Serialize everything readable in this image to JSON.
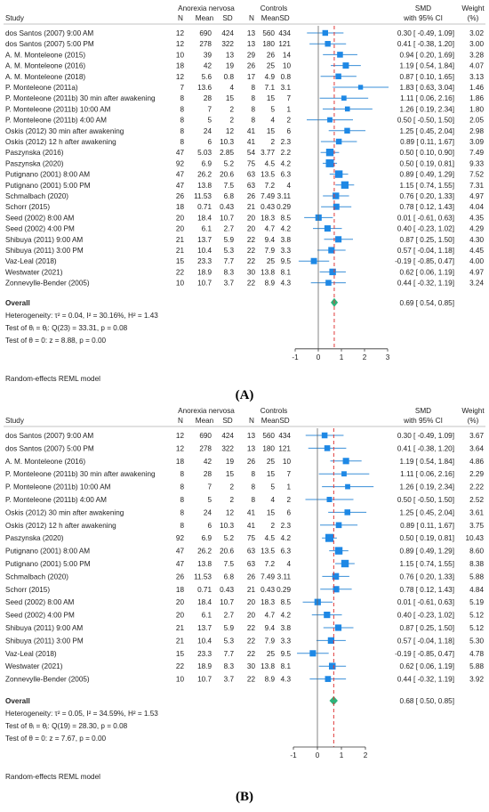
{
  "chart_data": [
    {
      "type": "forest",
      "panel": "(A)",
      "headers": {
        "study": "Study",
        "group1": "Anorexia nervosa",
        "group2": "Controls",
        "n1": "N",
        "mean1": "Mean",
        "sd1": "SD",
        "n2": "N",
        "mean2": "Mean",
        "sd2": "SD",
        "smd_line1": "SMD",
        "smd_line2": "with 95% CI",
        "weight_line1": "Weight",
        "weight_line2": "(%)"
      },
      "studies": [
        {
          "name": "dos Santos (2007) 9:00 AM",
          "n1": "12",
          "mean1": "690",
          "sd1": "424",
          "n2": "13",
          "mean2": "560",
          "sd2": "434",
          "smd": 0.3,
          "lo": -0.49,
          "hi": 1.09,
          "ci_text": "0.30 [ -0.49, 1.09]",
          "weight": "3.02"
        },
        {
          "name": "dos Santos (2007) 5:00 PM",
          "n1": "12",
          "mean1": "278",
          "sd1": "322",
          "n2": "13",
          "mean2": "180",
          "sd2": "121",
          "smd": 0.41,
          "lo": -0.38,
          "hi": 1.2,
          "ci_text": "0.41 [ -0.38, 1.20]",
          "weight": "3.00"
        },
        {
          "name": "A. M. Monteleone (2015)",
          "n1": "10",
          "mean1": "39",
          "sd1": "13",
          "n2": "29",
          "mean2": "26",
          "sd2": "14",
          "smd": 0.94,
          "lo": 0.2,
          "hi": 1.69,
          "ci_text": "0.94 [ 0.20, 1.69]",
          "weight": "3.28"
        },
        {
          "name": "A. M. Monteleone (2016)",
          "n1": "18",
          "mean1": "42",
          "sd1": "19",
          "n2": "26",
          "mean2": "25",
          "sd2": "10",
          "smd": 1.19,
          "lo": 0.54,
          "hi": 1.84,
          "ci_text": "1.19 [ 0.54, 1.84]",
          "weight": "4.07"
        },
        {
          "name": "A. M. Monteleone (2018)",
          "n1": "12",
          "mean1": "5.6",
          "sd1": "0.8",
          "n2": "17",
          "mean2": "4.9",
          "sd2": "0.8",
          "smd": 0.87,
          "lo": 0.1,
          "hi": 1.65,
          "ci_text": "0.87 [ 0.10, 1.65]",
          "weight": "3.13"
        },
        {
          "name": "P. Monteleone (2011a)",
          "n1": "7",
          "mean1": "13.6",
          "sd1": "4",
          "n2": "8",
          "mean2": "7.1",
          "sd2": "3.1",
          "smd": 1.83,
          "lo": 0.63,
          "hi": 3.04,
          "ci_text": "1.83 [ 0.63, 3.04]",
          "weight": "1.46"
        },
        {
          "name": "P. Monteleone (2011b) 30 min after awakening",
          "n1": "8",
          "mean1": "28",
          "sd1": "15",
          "n2": "8",
          "mean2": "15",
          "sd2": "7",
          "smd": 1.11,
          "lo": 0.06,
          "hi": 2.16,
          "ci_text": "1.11 [ 0.06, 2.16]",
          "weight": "1.86"
        },
        {
          "name": "P. Monteleone (2011b) 10:00 AM",
          "n1": "8",
          "mean1": "7",
          "sd1": "2",
          "n2": "8",
          "mean2": "5",
          "sd2": "1",
          "smd": 1.26,
          "lo": 0.19,
          "hi": 2.34,
          "ci_text": "1.26 [ 0.19, 2.34]",
          "weight": "1.80"
        },
        {
          "name": "P. Monteleone (2011b) 4:00 AM",
          "n1": "8",
          "mean1": "5",
          "sd1": "2",
          "n2": "8",
          "mean2": "4",
          "sd2": "2",
          "smd": 0.5,
          "lo": -0.5,
          "hi": 1.5,
          "ci_text": "0.50 [ -0.50, 1.50]",
          "weight": "2.05"
        },
        {
          "name": "Oskis (2012) 30 min after awakening",
          "n1": "8",
          "mean1": "24",
          "sd1": "12",
          "n2": "41",
          "mean2": "15",
          "sd2": "6",
          "smd": 1.25,
          "lo": 0.45,
          "hi": 2.04,
          "ci_text": "1.25 [ 0.45, 2.04]",
          "weight": "2.98"
        },
        {
          "name": "Oskis (2012) 12 h after awakening",
          "n1": "8",
          "mean1": "6",
          "sd1": "10.3",
          "n2": "41",
          "mean2": "2",
          "sd2": "2.3",
          "smd": 0.89,
          "lo": 0.11,
          "hi": 1.67,
          "ci_text": "0.89 [ 0.11, 1.67]",
          "weight": "3.09"
        },
        {
          "name": "Paszynska (2016)",
          "n1": "47",
          "mean1": "5.03",
          "sd1": "2.85",
          "n2": "54",
          "mean2": "3.77",
          "sd2": "2.2",
          "smd": 0.5,
          "lo": 0.1,
          "hi": 0.9,
          "ci_text": "0.50 [ 0.10, 0.90]",
          "weight": "7.49"
        },
        {
          "name": "Paszynska (2020)",
          "n1": "92",
          "mean1": "6.9",
          "sd1": "5.2",
          "n2": "75",
          "mean2": "4.5",
          "sd2": "4.2",
          "smd": 0.5,
          "lo": 0.19,
          "hi": 0.81,
          "ci_text": "0.50 [ 0.19, 0.81]",
          "weight": "9.33"
        },
        {
          "name": "Putignano (2001) 8:00 AM",
          "n1": "47",
          "mean1": "26.2",
          "sd1": "20.6",
          "n2": "63",
          "mean2": "13.5",
          "sd2": "6.3",
          "smd": 0.89,
          "lo": 0.49,
          "hi": 1.29,
          "ci_text": "0.89 [ 0.49, 1.29]",
          "weight": "7.52"
        },
        {
          "name": "Putignano (2001) 5:00 PM",
          "n1": "47",
          "mean1": "13.8",
          "sd1": "7.5",
          "n2": "63",
          "mean2": "7.2",
          "sd2": "4",
          "smd": 1.15,
          "lo": 0.74,
          "hi": 1.55,
          "ci_text": "1.15 [ 0.74, 1.55]",
          "weight": "7.31"
        },
        {
          "name": "Schmalbach (2020)",
          "n1": "26",
          "mean1": "11.53",
          "sd1": "6.8",
          "n2": "26",
          "mean2": "7.49",
          "sd2": "3.11",
          "smd": 0.76,
          "lo": 0.2,
          "hi": 1.33,
          "ci_text": "0.76 [ 0.20, 1.33]",
          "weight": "4.97"
        },
        {
          "name": "Schorr (2015)",
          "n1": "18",
          "mean1": "0.71",
          "sd1": "0.43",
          "n2": "21",
          "mean2": "0.43",
          "sd2": "0.29",
          "smd": 0.78,
          "lo": 0.12,
          "hi": 1.43,
          "ci_text": "0.78 [ 0.12, 1.43]",
          "weight": "4.04"
        },
        {
          "name": "Seed (2002) 8:00 AM",
          "n1": "20",
          "mean1": "18.4",
          "sd1": "10.7",
          "n2": "20",
          "mean2": "18.3",
          "sd2": "8.5",
          "smd": 0.01,
          "lo": -0.61,
          "hi": 0.63,
          "ci_text": "0.01 [ -0.61, 0.63]",
          "weight": "4.35"
        },
        {
          "name": "Seed (2002) 4:00 PM",
          "n1": "20",
          "mean1": "6.1",
          "sd1": "2.7",
          "n2": "20",
          "mean2": "4.7",
          "sd2": "4.2",
          "smd": 0.4,
          "lo": -0.23,
          "hi": 1.02,
          "ci_text": "0.40 [ -0.23, 1.02]",
          "weight": "4.29"
        },
        {
          "name": "Shibuya (2011) 9:00 AM",
          "n1": "21",
          "mean1": "13.7",
          "sd1": "5.9",
          "n2": "22",
          "mean2": "9.4",
          "sd2": "3.8",
          "smd": 0.87,
          "lo": 0.25,
          "hi": 1.5,
          "ci_text": "0.87 [ 0.25, 1.50]",
          "weight": "4.30"
        },
        {
          "name": "Shibuya (2011) 3:00 PM",
          "n1": "21",
          "mean1": "10.4",
          "sd1": "5.3",
          "n2": "22",
          "mean2": "7.9",
          "sd2": "3.3",
          "smd": 0.57,
          "lo": -0.04,
          "hi": 1.18,
          "ci_text": "0.57 [ -0.04, 1.18]",
          "weight": "4.45"
        },
        {
          "name": "Vaz-Leal (2018)",
          "n1": "15",
          "mean1": "23.3",
          "sd1": "7.7",
          "n2": "22",
          "mean2": "25",
          "sd2": "9.5",
          "smd": -0.19,
          "lo": -0.85,
          "hi": 0.47,
          "ci_text": "-0.19 [ -0.85, 0.47]",
          "weight": "4.00"
        },
        {
          "name": "Westwater (2021)",
          "n1": "22",
          "mean1": "18.9",
          "sd1": "8.3",
          "n2": "30",
          "mean2": "13.8",
          "sd2": "8.1",
          "smd": 0.62,
          "lo": 0.06,
          "hi": 1.19,
          "ci_text": "0.62 [ 0.06, 1.19]",
          "weight": "4.97"
        },
        {
          "name": "Zonnevylle-Bender (2005)",
          "n1": "10",
          "mean1": "10.7",
          "sd1": "3.7",
          "n2": "22",
          "mean2": "8.9",
          "sd2": "4.3",
          "smd": 0.44,
          "lo": -0.32,
          "hi": 1.19,
          "ci_text": "0.44 [ -0.32, 1.19]",
          "weight": "3.24"
        }
      ],
      "overall": {
        "label": "Overall",
        "smd": 0.69,
        "lo": 0.54,
        "hi": 0.85,
        "ci_text": "0.69 [ 0.54, 0.85]"
      },
      "stats": [
        "Heterogeneity: τ² = 0.04, I² = 30.16%, H² = 1.43",
        "Test of θᵢ = θⱼ: Q(23) = 33.31, p = 0.08",
        "Test of θ = 0: z = 8.88, p = 0.00"
      ],
      "model_note": "Random-effects REML model",
      "xlim": [
        -1,
        3
      ],
      "xticks": [
        -1,
        0,
        1,
        2,
        3
      ],
      "ref_line": 0
    },
    {
      "type": "forest",
      "panel": "(B)",
      "headers": {
        "study": "Study",
        "group1": "Anorexia nervosa",
        "group2": "Controls",
        "n1": "N",
        "mean1": "Mean",
        "sd1": "SD",
        "n2": "N",
        "mean2": "Mean",
        "sd2": "SD",
        "smd_line1": "SMD",
        "smd_line2": "with 95% CI",
        "weight_line1": "Weight",
        "weight_line2": "(%)"
      },
      "studies": [
        {
          "name": "dos Santos (2007) 9:00 AM",
          "n1": "12",
          "mean1": "690",
          "sd1": "424",
          "n2": "13",
          "mean2": "560",
          "sd2": "434",
          "smd": 0.3,
          "lo": -0.49,
          "hi": 1.09,
          "ci_text": "0.30 [ -0.49, 1.09]",
          "weight": "3.67"
        },
        {
          "name": "dos Santos (2007) 5:00 PM",
          "n1": "12",
          "mean1": "278",
          "sd1": "322",
          "n2": "13",
          "mean2": "180",
          "sd2": "121",
          "smd": 0.41,
          "lo": -0.38,
          "hi": 1.2,
          "ci_text": "0.41 [ -0.38, 1.20]",
          "weight": "3.64"
        },
        {
          "name": "A. M. Monteleone (2016)",
          "n1": "18",
          "mean1": "42",
          "sd1": "19",
          "n2": "26",
          "mean2": "25",
          "sd2": "10",
          "smd": 1.19,
          "lo": 0.54,
          "hi": 1.84,
          "ci_text": "1.19 [ 0.54, 1.84]",
          "weight": "4.86"
        },
        {
          "name": "P. Monteleone (2011b) 30 min after awakening",
          "n1": "8",
          "mean1": "28",
          "sd1": "15",
          "n2": "8",
          "mean2": "15",
          "sd2": "7",
          "smd": 1.11,
          "lo": 0.06,
          "hi": 2.16,
          "ci_text": "1.11 [ 0.06, 2.16]",
          "weight": "2.29"
        },
        {
          "name": "P. Monteleone (2011b) 10:00 AM",
          "n1": "8",
          "mean1": "7",
          "sd1": "2",
          "n2": "8",
          "mean2": "5",
          "sd2": "1",
          "smd": 1.26,
          "lo": 0.19,
          "hi": 2.34,
          "ci_text": "1.26 [ 0.19, 2.34]",
          "weight": "2.22"
        },
        {
          "name": "P. Monteleone (2011b) 4:00 AM",
          "n1": "8",
          "mean1": "5",
          "sd1": "2",
          "n2": "8",
          "mean2": "4",
          "sd2": "2",
          "smd": 0.5,
          "lo": -0.5,
          "hi": 1.5,
          "ci_text": "0.50 [ -0.50, 1.50]",
          "weight": "2.52"
        },
        {
          "name": "Oskis (2012) 30 min after awakening",
          "n1": "8",
          "mean1": "24",
          "sd1": "12",
          "n2": "41",
          "mean2": "15",
          "sd2": "6",
          "smd": 1.25,
          "lo": 0.45,
          "hi": 2.04,
          "ci_text": "1.25 [ 0.45, 2.04]",
          "weight": "3.61"
        },
        {
          "name": "Oskis (2012) 12 h after awakening",
          "n1": "8",
          "mean1": "6",
          "sd1": "10.3",
          "n2": "41",
          "mean2": "2",
          "sd2": "2.3",
          "smd": 0.89,
          "lo": 0.11,
          "hi": 1.67,
          "ci_text": "0.89 [ 0.11, 1.67]",
          "weight": "3.75"
        },
        {
          "name": "Paszynska (2020)",
          "n1": "92",
          "mean1": "6.9",
          "sd1": "5.2",
          "n2": "75",
          "mean2": "4.5",
          "sd2": "4.2",
          "smd": 0.5,
          "lo": 0.19,
          "hi": 0.81,
          "ci_text": "0.50 [ 0.19, 0.81]",
          "weight": "10.43"
        },
        {
          "name": "Putignano (2001) 8:00 AM",
          "n1": "47",
          "mean1": "26.2",
          "sd1": "20.6",
          "n2": "63",
          "mean2": "13.5",
          "sd2": "6.3",
          "smd": 0.89,
          "lo": 0.49,
          "hi": 1.29,
          "ci_text": "0.89 [ 0.49, 1.29]",
          "weight": "8.60"
        },
        {
          "name": "Putignano (2001) 5:00 PM",
          "n1": "47",
          "mean1": "13.8",
          "sd1": "7.5",
          "n2": "63",
          "mean2": "7.2",
          "sd2": "4",
          "smd": 1.15,
          "lo": 0.74,
          "hi": 1.55,
          "ci_text": "1.15 [ 0.74, 1.55]",
          "weight": "8.38"
        },
        {
          "name": "Schmalbach (2020)",
          "n1": "26",
          "mean1": "11.53",
          "sd1": "6.8",
          "n2": "26",
          "mean2": "7.49",
          "sd2": "3.11",
          "smd": 0.76,
          "lo": 0.2,
          "hi": 1.33,
          "ci_text": "0.76 [ 0.20, 1.33]",
          "weight": "5.88"
        },
        {
          "name": "Schorr (2015)",
          "n1": "18",
          "mean1": "0.71",
          "sd1": "0.43",
          "n2": "21",
          "mean2": "0.43",
          "sd2": "0.29",
          "smd": 0.78,
          "lo": 0.12,
          "hi": 1.43,
          "ci_text": "0.78 [ 0.12, 1.43]",
          "weight": "4.84"
        },
        {
          "name": "Seed (2002) 8:00 AM",
          "n1": "20",
          "mean1": "18.4",
          "sd1": "10.7",
          "n2": "20",
          "mean2": "18.3",
          "sd2": "8.5",
          "smd": 0.01,
          "lo": -0.61,
          "hi": 0.63,
          "ci_text": "0.01 [ -0.61, 0.63]",
          "weight": "5.19"
        },
        {
          "name": "Seed (2002) 4:00 PM",
          "n1": "20",
          "mean1": "6.1",
          "sd1": "2.7",
          "n2": "20",
          "mean2": "4.7",
          "sd2": "4.2",
          "smd": 0.4,
          "lo": -0.23,
          "hi": 1.02,
          "ci_text": "0.40 [ -0.23, 1.02]",
          "weight": "5.12"
        },
        {
          "name": "Shibuya (2011) 9:00 AM",
          "n1": "21",
          "mean1": "13.7",
          "sd1": "5.9",
          "n2": "22",
          "mean2": "9.4",
          "sd2": "3.8",
          "smd": 0.87,
          "lo": 0.25,
          "hi": 1.5,
          "ci_text": "0.87 [ 0.25, 1.50]",
          "weight": "5.12"
        },
        {
          "name": "Shibuya (2011) 3:00 PM",
          "n1": "21",
          "mean1": "10.4",
          "sd1": "5.3",
          "n2": "22",
          "mean2": "7.9",
          "sd2": "3.3",
          "smd": 0.57,
          "lo": -0.04,
          "hi": 1.18,
          "ci_text": "0.57 [ -0.04, 1.18]",
          "weight": "5.30"
        },
        {
          "name": "Vaz-Leal (2018)",
          "n1": "15",
          "mean1": "23.3",
          "sd1": "7.7",
          "n2": "22",
          "mean2": "25",
          "sd2": "9.5",
          "smd": -0.19,
          "lo": -0.85,
          "hi": 0.47,
          "ci_text": "-0.19 [ -0.85, 0.47]",
          "weight": "4.78"
        },
        {
          "name": "Westwater (2021)",
          "n1": "22",
          "mean1": "18.9",
          "sd1": "8.3",
          "n2": "30",
          "mean2": "13.8",
          "sd2": "8.1",
          "smd": 0.62,
          "lo": 0.06,
          "hi": 1.19,
          "ci_text": "0.62 [ 0.06, 1.19]",
          "weight": "5.88"
        },
        {
          "name": "Zonnevylle-Bender (2005)",
          "n1": "10",
          "mean1": "10.7",
          "sd1": "3.7",
          "n2": "22",
          "mean2": "8.9",
          "sd2": "4.3",
          "smd": 0.44,
          "lo": -0.32,
          "hi": 1.19,
          "ci_text": "0.44 [ -0.32, 1.19]",
          "weight": "3.92"
        }
      ],
      "overall": {
        "label": "Overall",
        "smd": 0.68,
        "lo": 0.5,
        "hi": 0.85,
        "ci_text": "0.68 [ 0.50, 0.85]"
      },
      "stats": [
        "Heterogeneity: τ² = 0.05, I² = 34.59%, H² = 1.53",
        "Test of θᵢ = θⱼ: Q(19) = 28.30, p = 0.08",
        "Test of θ = 0: z = 7.67, p = 0.00"
      ],
      "model_note": "Random-effects REML model",
      "xlim": [
        -1,
        2
      ],
      "xticks": [
        -1,
        0,
        1,
        2
      ],
      "ref_line": 0
    }
  ],
  "colors": {
    "marker": "#1e88e5",
    "ci_line": "#3a8fd8",
    "diamond": "#2db37a",
    "overall_line": "#e03a3a",
    "axis": "#333333",
    "text": "#222222"
  }
}
